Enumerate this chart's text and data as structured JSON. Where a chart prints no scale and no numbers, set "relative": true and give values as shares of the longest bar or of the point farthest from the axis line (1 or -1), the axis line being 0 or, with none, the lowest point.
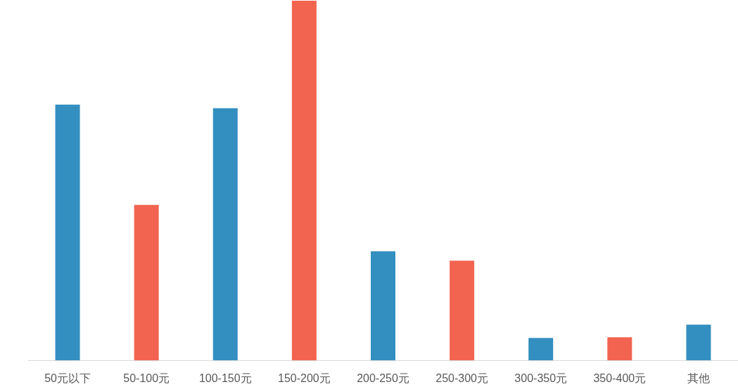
{
  "chart_data": {
    "type": "bar",
    "relative": true,
    "categories": [
      "50元以下",
      "50-100元",
      "100-150元",
      "150-200元",
      "200-250元",
      "250-300元",
      "300-350元",
      "350-400元",
      "其他"
    ],
    "values": [
      0.711,
      0.432,
      0.701,
      1,
      0.303,
      0.277,
      0.062,
      0.064,
      0.099
    ],
    "colors": [
      "#338fbf",
      "#f26450",
      "#338fbf",
      "#f26450",
      "#338fbf",
      "#f26450",
      "#338fbf",
      "#f26450",
      "#338fbf"
    ]
  }
}
